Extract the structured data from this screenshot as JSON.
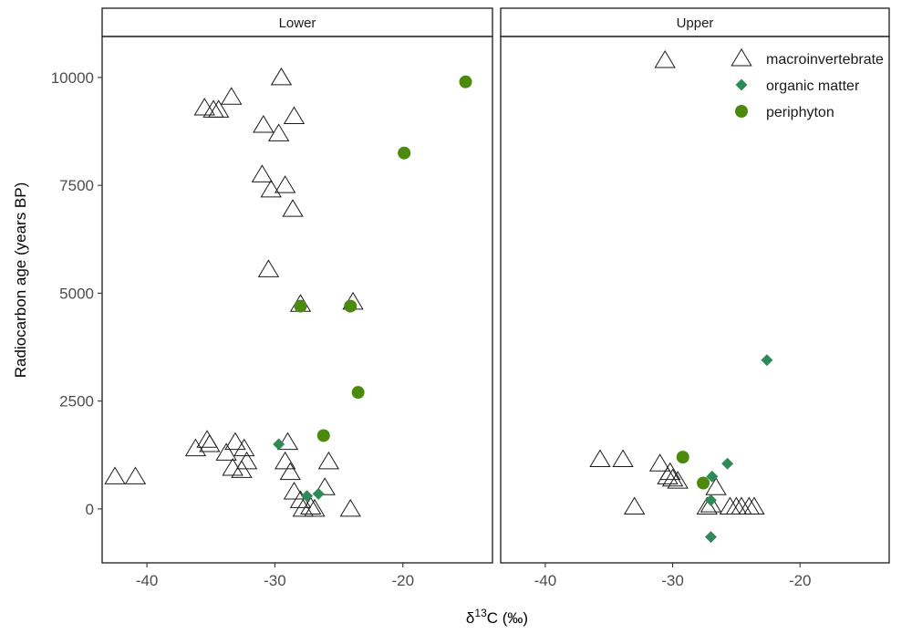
{
  "chart_data": {
    "type": "scatter",
    "xlabel": "δ¹³C (‰)",
    "ylabel": "Radiocarbon age (years BP)",
    "xlim": [
      -43.5,
      -13.0
    ],
    "ylim": [
      -1250,
      10950
    ],
    "y_ticks": [
      0,
      2500,
      5000,
      7500,
      10000
    ],
    "x_ticks": [
      -40,
      -30,
      -20
    ],
    "grid": false,
    "legend_position": "top-right inside Upper panel",
    "panels": [
      {
        "label": "Lower"
      },
      {
        "label": "Upper"
      }
    ],
    "series": [
      {
        "name": "macroinvertebrate",
        "shape": "triangle-open",
        "color": "#1a1a1a",
        "panels": {
          "Lower": [
            {
              "x": -42.5,
              "y": 750
            },
            {
              "x": -40.9,
              "y": 750
            },
            {
              "x": -36.2,
              "y": 1400
            },
            {
              "x": -35.3,
              "y": 1600
            },
            {
              "x": -35.1,
              "y": 1500
            },
            {
              "x": -33.8,
              "y": 1300
            },
            {
              "x": -33.3,
              "y": 950
            },
            {
              "x": -33.1,
              "y": 1550
            },
            {
              "x": -32.6,
              "y": 900
            },
            {
              "x": -32.4,
              "y": 1400
            },
            {
              "x": -32.2,
              "y": 1100
            },
            {
              "x": -29.0,
              "y": 1550
            },
            {
              "x": -29.2,
              "y": 1100
            },
            {
              "x": -28.8,
              "y": 850
            },
            {
              "x": -28.5,
              "y": 400
            },
            {
              "x": -28.0,
              "y": 200
            },
            {
              "x": -27.8,
              "y": 0
            },
            {
              "x": -27.2,
              "y": 50
            },
            {
              "x": -26.9,
              "y": 0
            },
            {
              "x": -26.1,
              "y": 500
            },
            {
              "x": -25.8,
              "y": 1100
            },
            {
              "x": -24.1,
              "y": 0
            },
            {
              "x": -35.5,
              "y": 9300
            },
            {
              "x": -34.8,
              "y": 9250
            },
            {
              "x": -34.4,
              "y": 9250
            },
            {
              "x": -33.4,
              "y": 9550
            },
            {
              "x": -29.5,
              "y": 10000
            },
            {
              "x": -28.5,
              "y": 9100
            },
            {
              "x": -30.9,
              "y": 8900
            },
            {
              "x": -29.7,
              "y": 8700
            },
            {
              "x": -31.0,
              "y": 7750
            },
            {
              "x": -30.3,
              "y": 7400
            },
            {
              "x": -29.2,
              "y": 7500
            },
            {
              "x": -28.6,
              "y": 6950
            },
            {
              "x": -30.5,
              "y": 5550
            },
            {
              "x": -28.0,
              "y": 4750
            },
            {
              "x": -23.9,
              "y": 4800
            }
          ],
          "Upper": [
            {
              "x": -35.7,
              "y": 1150
            },
            {
              "x": -33.9,
              "y": 1150
            },
            {
              "x": -33.0,
              "y": 50
            },
            {
              "x": -31.0,
              "y": 1050
            },
            {
              "x": -30.4,
              "y": 750
            },
            {
              "x": -30.2,
              "y": 850
            },
            {
              "x": -30.0,
              "y": 700
            },
            {
              "x": -29.6,
              "y": 650
            },
            {
              "x": -27.3,
              "y": 50
            },
            {
              "x": -27.0,
              "y": 100
            },
            {
              "x": -26.6,
              "y": 500
            },
            {
              "x": -25.5,
              "y": 50
            },
            {
              "x": -25.0,
              "y": 50
            },
            {
              "x": -24.6,
              "y": 50
            },
            {
              "x": -24.0,
              "y": 50
            },
            {
              "x": -23.6,
              "y": 50
            },
            {
              "x": -30.6,
              "y": 10400
            }
          ]
        }
      },
      {
        "name": "organic matter",
        "shape": "diamond",
        "color": "#2e8b57",
        "panels": {
          "Lower": [
            {
              "x": -29.7,
              "y": 1500
            },
            {
              "x": -27.5,
              "y": 300
            },
            {
              "x": -26.6,
              "y": 350
            }
          ],
          "Upper": [
            {
              "x": -26.9,
              "y": 750
            },
            {
              "x": -25.7,
              "y": 1050
            },
            {
              "x": -27.0,
              "y": 200
            },
            {
              "x": -27.0,
              "y": -650
            },
            {
              "x": -22.6,
              "y": 3450
            }
          ]
        }
      },
      {
        "name": "periphyton",
        "shape": "circle",
        "color": "#4b8a0c",
        "panels": {
          "Lower": [
            {
              "x": -15.1,
              "y": 9900
            },
            {
              "x": -19.9,
              "y": 8250
            },
            {
              "x": -28.0,
              "y": 4700
            },
            {
              "x": -24.1,
              "y": 4700
            },
            {
              "x": -23.5,
              "y": 2700
            },
            {
              "x": -26.2,
              "y": 1700
            }
          ],
          "Upper": [
            {
              "x": -29.2,
              "y": 1200
            },
            {
              "x": -27.6,
              "y": 600
            }
          ]
        }
      }
    ]
  }
}
